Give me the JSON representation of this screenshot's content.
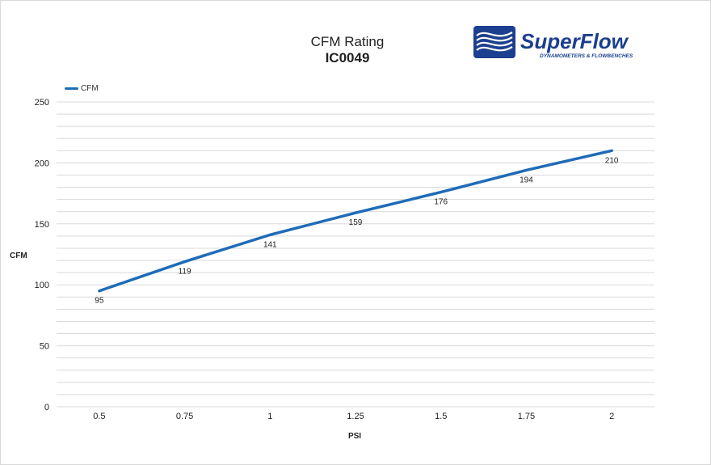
{
  "colors": {
    "series": "#1f6bb8",
    "grid": "#d9d9d9",
    "logo_blue": "#1c3f8f"
  },
  "logo": {
    "name": "SuperFlow",
    "tagline": "DYNAMOMETERS & FLOWBENCHES",
    "icon": "superflow-wave-icon"
  },
  "chart_data": {
    "type": "line",
    "title": "CFM Rating",
    "subtitle": "IC0049",
    "xlabel": "PSI",
    "ylabel": "CFM",
    "categories": [
      "0.5",
      "0.75",
      "1",
      "1.25",
      "1.5",
      "1.75",
      "2"
    ],
    "series": [
      {
        "name": "CFM",
        "values": [
          95,
          119,
          141,
          159,
          176,
          194,
          210
        ]
      }
    ],
    "ylim": [
      0,
      250
    ],
    "yticks": [
      "0",
      "50",
      "100",
      "150",
      "200",
      "250"
    ],
    "minor_grid_step": 10,
    "grid": true,
    "data_labels": true,
    "legend_position": "top-left"
  }
}
